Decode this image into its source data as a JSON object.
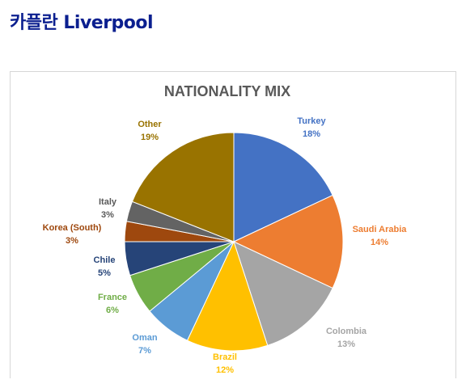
{
  "page": {
    "title": "카플란 Liverpool"
  },
  "chart_data": {
    "type": "pie",
    "title": "NATIONALITY MIX",
    "slices": [
      {
        "label": "Turkey",
        "value": 18,
        "display": "18%",
        "color": "#4472c4",
        "label_color": "#4472c4"
      },
      {
        "label": "Saudi Arabia",
        "value": 14,
        "display": "14%",
        "color": "#ed7d31",
        "label_color": "#ed7d31"
      },
      {
        "label": "Colombia",
        "value": 13,
        "display": "13%",
        "color": "#a5a5a5",
        "label_color": "#a5a5a5"
      },
      {
        "label": "Brazil",
        "value": 12,
        "display": "12%",
        "color": "#ffc000",
        "label_color": "#ffc000"
      },
      {
        "label": "Oman",
        "value": 7,
        "display": "7%",
        "color": "#5b9bd5",
        "label_color": "#5b9bd5"
      },
      {
        "label": "France",
        "value": 6,
        "display": "6%",
        "color": "#70ad47",
        "label_color": "#70ad47"
      },
      {
        "label": "Chile",
        "value": 5,
        "display": "5%",
        "color": "#264478",
        "label_color": "#264478"
      },
      {
        "label": "Korea (South)",
        "value": 3,
        "display": "3%",
        "color": "#9e480e",
        "label_color": "#9e480e"
      },
      {
        "label": "Italy",
        "value": 3,
        "display": "3%",
        "color": "#636363",
        "label_color": "#595959"
      },
      {
        "label": "Other",
        "value": 19,
        "display": "19%",
        "color": "#997300",
        "label_color": "#997300"
      }
    ],
    "legend": "none"
  }
}
